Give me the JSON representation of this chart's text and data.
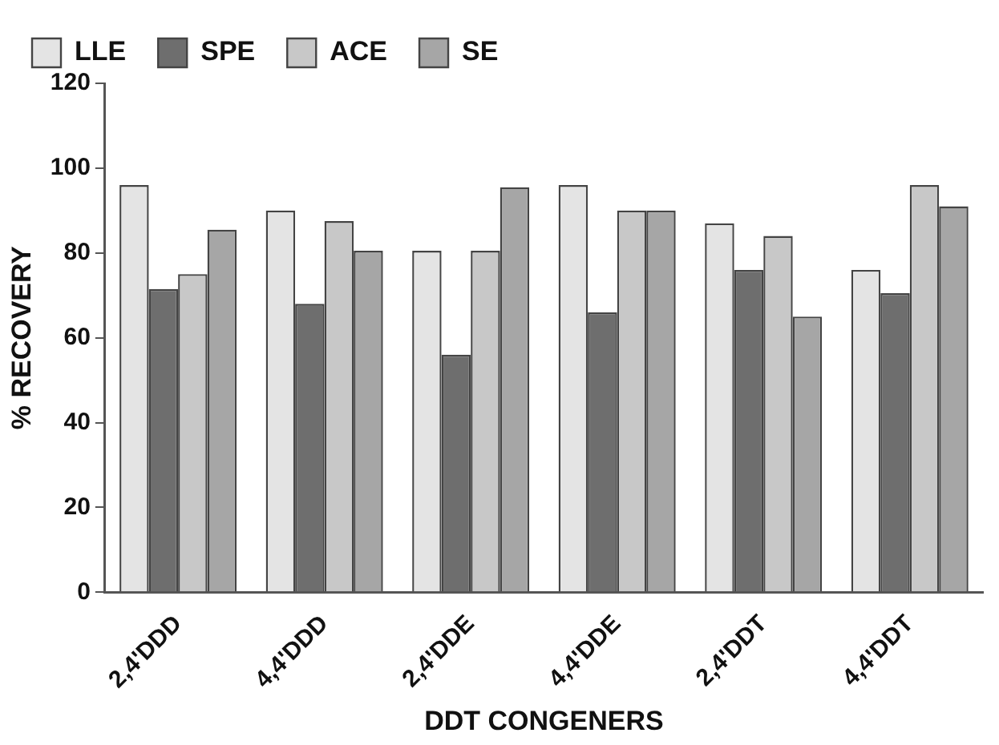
{
  "chart_data": {
    "type": "bar",
    "xlabel": "DDT CONGENERS",
    "ylabel": "% RECOVERY",
    "categories": [
      "2,4'DDD",
      "4,4'DDD",
      "2,4'DDE",
      "4,4'DDE",
      "2,4'DDT",
      "4,4'DDT"
    ],
    "series": [
      {
        "name": "LLE",
        "color": "#e4e4e4",
        "values": [
          96,
          90,
          80.5,
          96,
          87,
          76
        ]
      },
      {
        "name": "SPE",
        "color": "#6e6e6e",
        "values": [
          71.5,
          68,
          56,
          66,
          76,
          70.5
        ]
      },
      {
        "name": "ACE",
        "color": "#c8c8c8",
        "values": [
          75,
          87.5,
          80.5,
          90,
          84,
          96
        ]
      },
      {
        "name": "SE",
        "color": "#a6a6a6",
        "values": [
          85.5,
          80.5,
          95.5,
          90,
          65,
          91
        ]
      }
    ],
    "ylim": [
      0,
      120
    ],
    "yticks": [
      0,
      20,
      40,
      60,
      80,
      100,
      120
    ],
    "grid": false,
    "legend": "top"
  }
}
